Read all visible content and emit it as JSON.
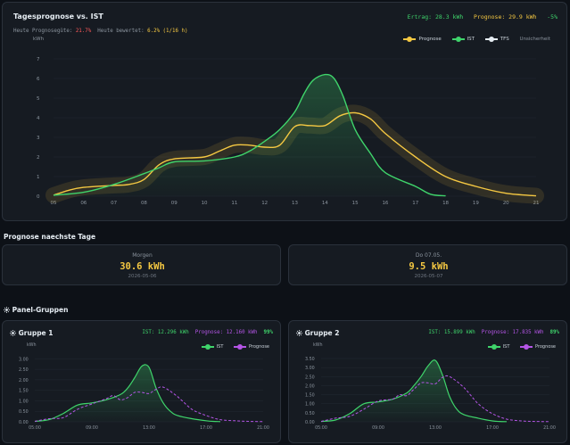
{
  "main": {
    "title": "Tagesprognose vs. IST",
    "summary": {
      "ertrag": "Ertrag: 28.3 kWh",
      "prognose": "Prognose: 29.9 kWh",
      "delta": "-5%"
    },
    "quality": {
      "label1": "Heute Prognosegüte:",
      "value1": "21.7%",
      "label2": "Heute bewertet:",
      "value2": "6.2% (1/16 h)"
    },
    "unit": "kWh",
    "legend": [
      "Prognose",
      "IST",
      "TFS",
      "Unsicherheit"
    ]
  },
  "forecast_section": {
    "title": "Prognose naechste Tage",
    "cards": [
      {
        "label": "Morgen",
        "value": "30.6 kWh",
        "date": "2026-05-06"
      },
      {
        "label": "Do 07.05.",
        "value": "9.5 kWh",
        "date": "2026-05-07"
      }
    ]
  },
  "panels_section": {
    "title": "Panel-Gruppen",
    "icon": "sun-icon",
    "groups": [
      {
        "name": "Gruppe 1",
        "ist": "IST: 12.296 kWh",
        "prognose": "Prognose: 12.160 kWh",
        "pct": "99%",
        "unit": "kWh",
        "legend_ist": "IST",
        "legend_prog": "Prognose"
      },
      {
        "name": "Gruppe 2",
        "ist": "IST: 15.899 kWh",
        "prognose": "Prognose: 17.835 kWh",
        "pct": "89%",
        "unit": "kWh",
        "legend_ist": "IST",
        "legend_prog": "Prognose"
      }
    ]
  },
  "colors": {
    "ist": "#3fd46b",
    "prognose": "#f5c842",
    "group_prognose": "#b455e6",
    "tfs": "#e6edf3",
    "warn": "#ff5a5a"
  },
  "chart_data": [
    {
      "type": "line",
      "title": "Tagesprognose vs. IST",
      "ylabel": "kWh",
      "x": [
        5,
        6,
        7,
        8,
        9,
        10,
        11,
        12,
        13,
        14,
        15,
        16,
        17,
        18,
        19,
        20,
        21
      ],
      "xticks": [
        "05",
        "06",
        "07",
        "08",
        "09",
        "10",
        "11",
        "12",
        "13",
        "14",
        "15",
        "16",
        "17",
        "18",
        "19",
        "20",
        "21"
      ],
      "yticks": [
        0,
        1,
        2,
        3,
        4,
        5,
        6,
        7
      ],
      "ylim": [
        0,
        7.5
      ],
      "series": [
        {
          "name": "IST",
          "x": [
            5,
            6,
            7,
            8,
            8.5,
            9,
            10,
            11,
            11.5,
            12,
            12.5,
            13,
            13.3,
            13.6,
            14,
            14.3,
            14.6,
            15,
            15.5,
            16,
            17,
            17.5,
            18
          ],
          "values": [
            0.05,
            0.2,
            0.6,
            1.15,
            1.45,
            1.75,
            1.8,
            2.0,
            2.3,
            2.8,
            3.4,
            4.3,
            5.2,
            5.9,
            6.2,
            6.0,
            5.1,
            3.4,
            2.2,
            1.2,
            0.5,
            0.1,
            0.02
          ]
        },
        {
          "name": "Prognose",
          "x": [
            5,
            5.5,
            6,
            7,
            7.5,
            8,
            8.5,
            9,
            10,
            10.5,
            11,
            11.5,
            12,
            12.5,
            13,
            13.5,
            14,
            14.5,
            15,
            15.5,
            16,
            17,
            18,
            19,
            20,
            21
          ],
          "values": [
            0.05,
            0.3,
            0.45,
            0.55,
            0.6,
            0.85,
            1.6,
            1.9,
            2.0,
            2.3,
            2.6,
            2.6,
            2.5,
            2.6,
            3.55,
            3.6,
            3.6,
            4.1,
            4.25,
            3.95,
            3.2,
            2.0,
            1.0,
            0.5,
            0.15,
            0.02
          ]
        }
      ]
    },
    {
      "type": "line",
      "title": "Gruppe 1",
      "ylabel": "kWh",
      "x_ticks": [
        "05:00",
        "09:00",
        "13:00",
        "17:00",
        "21:00"
      ],
      "yticks": [
        0.0,
        0.5,
        1.0,
        1.5,
        2.0,
        2.5,
        3.0
      ],
      "ylim": [
        0,
        3.1
      ],
      "series": [
        {
          "name": "IST",
          "x": [
            5,
            6,
            7,
            8,
            9,
            10,
            11,
            11.5,
            12,
            12.5,
            13,
            13.5,
            14,
            14.5,
            15,
            16,
            17,
            17.5,
            18
          ],
          "values": [
            0.02,
            0.1,
            0.4,
            0.8,
            0.9,
            1.05,
            1.3,
            1.6,
            2.1,
            2.65,
            2.6,
            1.6,
            0.9,
            0.5,
            0.3,
            0.15,
            0.05,
            0.02,
            0.01
          ]
        },
        {
          "name": "Prognose",
          "x": [
            5,
            6,
            7,
            8,
            9,
            10,
            10.5,
            11,
            11.5,
            12,
            12.5,
            13,
            13.5,
            14,
            15,
            16,
            17,
            18,
            19,
            20,
            21
          ],
          "values": [
            0.02,
            0.15,
            0.2,
            0.6,
            0.85,
            1.1,
            1.25,
            1.05,
            1.15,
            1.4,
            1.4,
            1.35,
            1.55,
            1.65,
            1.2,
            0.6,
            0.3,
            0.1,
            0.05,
            0.02,
            0.01
          ]
        }
      ]
    },
    {
      "type": "line",
      "title": "Gruppe 2",
      "ylabel": "kWh",
      "x_ticks": [
        "05:00",
        "09:00",
        "13:00",
        "17:00",
        "21:00"
      ],
      "yticks": [
        0.0,
        0.5,
        1.0,
        1.5,
        2.0,
        2.5,
        3.0,
        3.5
      ],
      "ylim": [
        0,
        3.6
      ],
      "series": [
        {
          "name": "IST",
          "x": [
            5,
            6,
            7,
            8,
            9,
            10,
            11,
            11.5,
            12,
            12.5,
            13,
            13.5,
            14,
            14.5,
            15,
            16,
            17,
            17.5,
            18
          ],
          "values": [
            0.02,
            0.1,
            0.45,
            1.0,
            1.1,
            1.25,
            1.6,
            2.0,
            2.5,
            3.1,
            3.4,
            2.6,
            1.4,
            0.7,
            0.4,
            0.2,
            0.05,
            0.02,
            0.01
          ]
        },
        {
          "name": "Prognose",
          "x": [
            5,
            6,
            7,
            8,
            9,
            10,
            10.5,
            11,
            11.5,
            12,
            12.5,
            13,
            13.5,
            14,
            15,
            16,
            17,
            18,
            19,
            20,
            21
          ],
          "values": [
            0.02,
            0.2,
            0.3,
            0.7,
            1.15,
            1.25,
            1.5,
            1.45,
            1.8,
            2.15,
            2.15,
            2.1,
            2.45,
            2.5,
            1.9,
            1.0,
            0.45,
            0.15,
            0.05,
            0.02,
            0.01
          ]
        }
      ]
    }
  ]
}
